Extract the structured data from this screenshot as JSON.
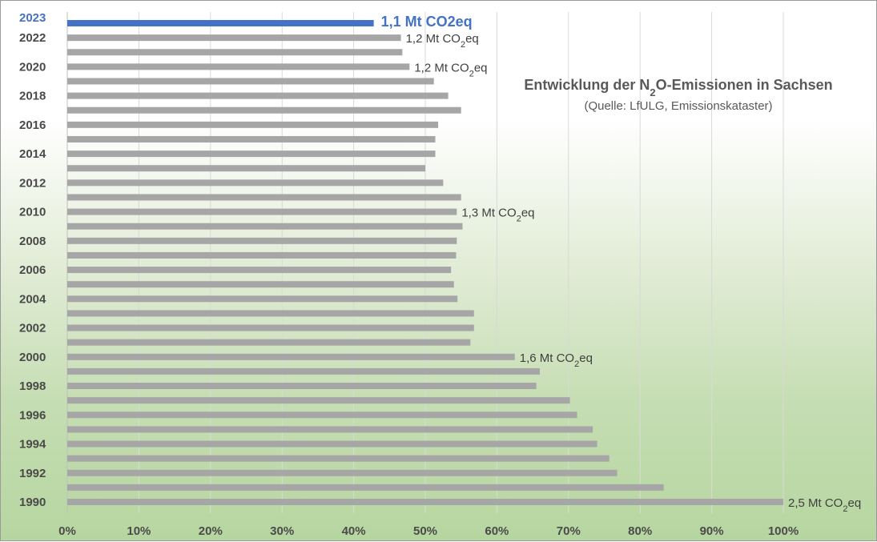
{
  "chart_data": {
    "type": "bar",
    "orientation": "horizontal",
    "title_parts": [
      "Entwicklung der N",
      "2",
      "O-Emissionen in Sachsen"
    ],
    "subtitle": "(Quelle: LfULG, Emissionskataster)",
    "x_axis": {
      "min": 0,
      "max": 1,
      "ticks": [
        "0%",
        "10%",
        "20%",
        "30%",
        "40%",
        "50%",
        "60%",
        "70%",
        "80%",
        "90%",
        "100%"
      ],
      "gridlines": true
    },
    "categories": [
      1990,
      1991,
      1992,
      1993,
      1994,
      1995,
      1996,
      1997,
      1998,
      1999,
      2000,
      2001,
      2002,
      2003,
      2004,
      2005,
      2006,
      2007,
      2008,
      2009,
      2010,
      2011,
      2012,
      2013,
      2014,
      2015,
      2016,
      2017,
      2018,
      2019,
      2020,
      2021,
      2022,
      2023
    ],
    "category_labels_shown": [
      "1990",
      "1992",
      "1994",
      "1996",
      "1998",
      "2000",
      "2002",
      "2004",
      "2006",
      "2008",
      "2010",
      "2012",
      "2014",
      "2016",
      "2018",
      "2020",
      "2022",
      "2023"
    ],
    "values": [
      1.0,
      0.833,
      0.768,
      0.757,
      0.74,
      0.734,
      0.712,
      0.702,
      0.655,
      0.66,
      0.625,
      0.563,
      0.568,
      0.568,
      0.545,
      0.54,
      0.536,
      0.543,
      0.544,
      0.552,
      0.544,
      0.55,
      0.525,
      0.5,
      0.514,
      0.514,
      0.518,
      0.55,
      0.532,
      0.512,
      0.478,
      0.468,
      0.466,
      0.428
    ],
    "highlight_category": 2023,
    "bar_color": "#a6a6a6",
    "highlight_color": "#4472c4",
    "annotations": [
      {
        "category": 1990,
        "text": "2,5 Mt CO",
        "sub": "2",
        "tail": "eq",
        "highlight": false
      },
      {
        "category": 2000,
        "text": "1,6 Mt CO",
        "sub": "2",
        "tail": "eq",
        "highlight": false
      },
      {
        "category": 2010,
        "text": "1,3 Mt CO",
        "sub": "2",
        "tail": "eq",
        "highlight": false
      },
      {
        "category": 2020,
        "text": "1,2 Mt CO",
        "sub": "2",
        "tail": "eq",
        "highlight": false
      },
      {
        "category": 2022,
        "text": "1,2 Mt CO",
        "sub": "2",
        "tail": "eq",
        "highlight": false
      },
      {
        "category": 2023,
        "text": "1,1 Mt CO2eq",
        "sub": "",
        "tail": "",
        "highlight": true
      }
    ]
  }
}
